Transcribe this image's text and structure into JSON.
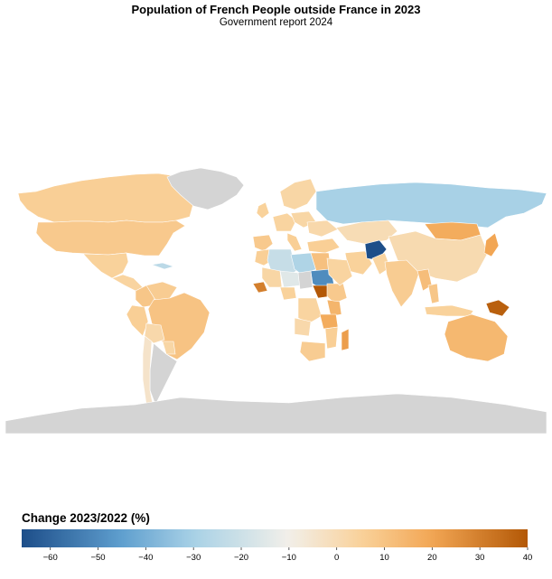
{
  "title": "Population of French People outside France in 2023",
  "subtitle": "Government report 2024",
  "legend": {
    "title": "Change 2023/2022 (%)",
    "min": -66,
    "max": 40,
    "ticks": [
      -60,
      -50,
      -40,
      -30,
      -20,
      -10,
      0,
      10,
      20,
      30,
      40
    ],
    "tick_labels": [
      "−60",
      "−50",
      "−40",
      "−30",
      "−20",
      "−10",
      "0",
      "10",
      "20",
      "30",
      "40"
    ]
  },
  "colors": {
    "no_data": "#d4d4d4",
    "scale": [
      "#1d4e89",
      "#5f9fcf",
      "#a8d1e6",
      "#f2efe9",
      "#f9d29b",
      "#f2a654",
      "#b35806"
    ]
  },
  "map_data": {
    "regions": [
      {
        "name": "Canada",
        "value": 6
      },
      {
        "name": "United States",
        "value": 8
      },
      {
        "name": "Greenland",
        "value": null
      },
      {
        "name": "Mexico",
        "value": 5
      },
      {
        "name": "Cuba",
        "value": -25
      },
      {
        "name": "Central America",
        "value": 4
      },
      {
        "name": "Colombia",
        "value": 9
      },
      {
        "name": "Venezuela",
        "value": 7
      },
      {
        "name": "Peru",
        "value": 6
      },
      {
        "name": "Brazil",
        "value": 10
      },
      {
        "name": "Bolivia",
        "value": 2
      },
      {
        "name": "Paraguay",
        "value": 3
      },
      {
        "name": "Argentina",
        "value": null
      },
      {
        "name": "Chile",
        "value": -4
      },
      {
        "name": "Spain",
        "value": 8
      },
      {
        "name": "United Kingdom",
        "value": 5
      },
      {
        "name": "Germany",
        "value": 4
      },
      {
        "name": "Italy",
        "value": 6
      },
      {
        "name": "Poland",
        "value": 3
      },
      {
        "name": "Ukraine",
        "value": 2
      },
      {
        "name": "Scandinavia",
        "value": 3
      },
      {
        "name": "Russia",
        "value": -30
      },
      {
        "name": "Kazakhstan",
        "value": 0
      },
      {
        "name": "Mongolia",
        "value": 18
      },
      {
        "name": "China",
        "value": 1
      },
      {
        "name": "Japan",
        "value": 20
      },
      {
        "name": "Turkey",
        "value": 6
      },
      {
        "name": "Iran",
        "value": 5
      },
      {
        "name": "Afghanistan",
        "value": -66
      },
      {
        "name": "Pakistan",
        "value": 4
      },
      {
        "name": "India",
        "value": 7
      },
      {
        "name": "Myanmar",
        "value": 12
      },
      {
        "name": "Thailand",
        "value": 9
      },
      {
        "name": "Indonesia",
        "value": 5
      },
      {
        "name": "Papua New Guinea",
        "value": 38
      },
      {
        "name": "Australia",
        "value": 14
      },
      {
        "name": "Morocco",
        "value": 6
      },
      {
        "name": "Algeria",
        "value": -22
      },
      {
        "name": "Libya",
        "value": -28
      },
      {
        "name": "Egypt",
        "value": 11
      },
      {
        "name": "Sudan",
        "value": -50
      },
      {
        "name": "South Sudan",
        "value": 40
      },
      {
        "name": "Ethiopia",
        "value": 8
      },
      {
        "name": "Mali",
        "value": 3
      },
      {
        "name": "Niger",
        "value": -15
      },
      {
        "name": "Guinea",
        "value": 30
      },
      {
        "name": "Nigeria",
        "value": 5
      },
      {
        "name": "Chad",
        "value": null
      },
      {
        "name": "DR Congo",
        "value": 4
      },
      {
        "name": "Angola",
        "value": 2
      },
      {
        "name": "Kenya",
        "value": 15
      },
      {
        "name": "Tanzania",
        "value": 18
      },
      {
        "name": "Mozambique",
        "value": 6
      },
      {
        "name": "South Africa",
        "value": 7
      },
      {
        "name": "Madagascar",
        "value": 22
      },
      {
        "name": "Saudi Arabia",
        "value": 4
      },
      {
        "name": "Antarctica",
        "value": null
      }
    ]
  }
}
